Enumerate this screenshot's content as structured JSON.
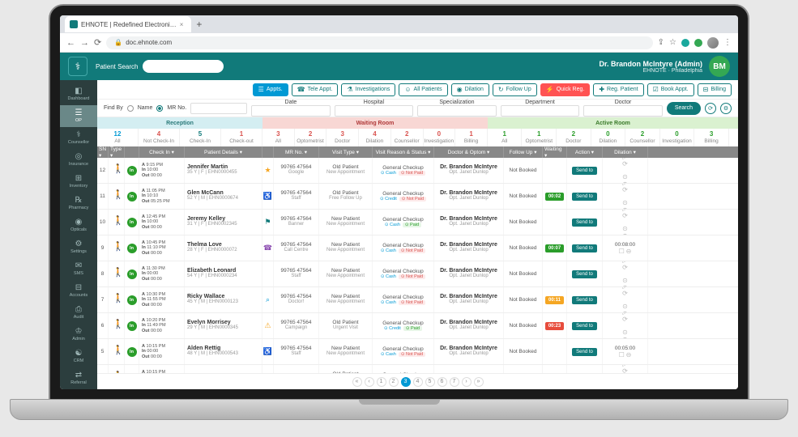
{
  "browser": {
    "tab_title": "EHNOTE | Redefined Electroni…",
    "url": "doc.ehnote.com",
    "lock": "🔒"
  },
  "header": {
    "search_label": "Patient Search",
    "user_name": "Dr. Brandon McIntyre (Admin)",
    "user_location": "EHNOTE · Philadelphia",
    "avatar_initials": "BM"
  },
  "sidebar": [
    {
      "icon": "◧",
      "label": "Dashboard"
    },
    {
      "icon": "☰",
      "label": "OP"
    },
    {
      "icon": "⚕",
      "label": "Counsellor"
    },
    {
      "icon": "◎",
      "label": "Insurance"
    },
    {
      "icon": "⊞",
      "label": "Inventory"
    },
    {
      "icon": "℞",
      "label": "Pharmacy"
    },
    {
      "icon": "◉",
      "label": "Opticals"
    },
    {
      "icon": "⚙",
      "label": "Settings"
    },
    {
      "icon": "✉",
      "label": "SMS"
    },
    {
      "icon": "⊟",
      "label": "Accounts"
    },
    {
      "icon": "⎙",
      "label": "Audit"
    },
    {
      "icon": "♔",
      "label": "Admin"
    },
    {
      "icon": "☯",
      "label": "CRM"
    },
    {
      "icon": "⇄",
      "label": "Referral"
    }
  ],
  "action_buttons": [
    {
      "label": "Appts.",
      "style": "primary",
      "icon": "☰"
    },
    {
      "label": "Tele Appt.",
      "style": "",
      "icon": "☎"
    },
    {
      "label": "Investigations",
      "style": "",
      "icon": "⚗"
    },
    {
      "label": "All Patients",
      "style": "",
      "icon": "☺"
    },
    {
      "label": "Dilation",
      "style": "",
      "icon": "◉"
    },
    {
      "label": "Follow Up",
      "style": "",
      "icon": "↻"
    },
    {
      "label": "Quick Reg.",
      "style": "danger",
      "icon": "⚡"
    },
    {
      "label": "Reg. Patient",
      "style": "",
      "icon": "✚"
    },
    {
      "label": "Book Appt.",
      "style": "",
      "icon": "☑"
    },
    {
      "label": "Billing",
      "style": "",
      "icon": "⊟"
    }
  ],
  "filters": {
    "findby_label": "Find By",
    "name_label": "Name",
    "mr_label": "MR No.",
    "date_label": "Date",
    "hospital_label": "Hospital",
    "specialization_label": "Specialization",
    "department_label": "Department",
    "doctor_label": "Doctor",
    "search_label": "Search"
  },
  "stages": {
    "reception": "Reception",
    "waiting": "Waiting Room",
    "active": "Active Room"
  },
  "reception_counts": [
    {
      "num": "12",
      "label": "All",
      "cls": "blue"
    },
    {
      "num": "4",
      "label": "Not Check-In",
      "cls": "red"
    },
    {
      "num": "5",
      "label": "Check-In",
      "cls": "teal"
    },
    {
      "num": "1",
      "label": "Check-out",
      "cls": "red"
    }
  ],
  "waiting_counts": [
    {
      "num": "3",
      "label": "All",
      "cls": "red"
    },
    {
      "num": "2",
      "label": "Optometrist",
      "cls": "red"
    },
    {
      "num": "3",
      "label": "Doctor",
      "cls": "red"
    },
    {
      "num": "4",
      "label": "Dilation",
      "cls": "red"
    },
    {
      "num": "2",
      "label": "Counsellor",
      "cls": "red"
    },
    {
      "num": "0",
      "label": "Investigation",
      "cls": "red"
    },
    {
      "num": "1",
      "label": "Billing",
      "cls": "red"
    }
  ],
  "active_counts": [
    {
      "num": "1",
      "label": "All",
      "cls": "green"
    },
    {
      "num": "1",
      "label": "Optometrist",
      "cls": "green"
    },
    {
      "num": "2",
      "label": "Doctor",
      "cls": "green"
    },
    {
      "num": "0",
      "label": "Dilation",
      "cls": "green"
    },
    {
      "num": "2",
      "label": "Counsellor",
      "cls": "green"
    },
    {
      "num": "0",
      "label": "Investigation",
      "cls": "green"
    },
    {
      "num": "3",
      "label": "Billing",
      "cls": "green"
    }
  ],
  "columns": [
    "SN",
    "Type",
    "",
    "Check In",
    "Patient Details",
    "",
    "MR No.",
    "Visit Type",
    "Visit Reason & Status",
    "Doctor & Optom",
    "Follow Up",
    "Waiting",
    "Action",
    "Dilation"
  ],
  "rows": [
    {
      "sn": "12",
      "walk": "walk-teal",
      "a": "9:15 PM",
      "in": "10:00",
      "out": "00:00",
      "name": "Jennifer Martin",
      "sub": "35 Y | F | EHN0000455",
      "src": "★",
      "srccls": "src-yellow",
      "mr": "99765 47564",
      "mrsrc": "Google",
      "vt": "Old Patient",
      "vt2": "New Appointment",
      "reason": "General Checkup",
      "pay": "Cash",
      "paystat": "Not Paid",
      "paycls": "pay-unpaid",
      "doc": "Dr. Brandon McIntyre",
      "opt": "Opt. Janet Dunlop",
      "follow": "Not Booked",
      "wait": "",
      "wcls": "",
      "dil": ""
    },
    {
      "sn": "11",
      "walk": "walk-blue",
      "a": "11:05 PM",
      "in": "10:10",
      "out": "05:25 PM",
      "name": "Glen McCann",
      "sub": "52 Y | M | EHN0000674",
      "src": "♿",
      "srccls": "src-blue",
      "mr": "99765 47564",
      "mrsrc": "Staff",
      "vt": "Old Patient",
      "vt2": "Free Follow Up",
      "reason": "General Checkup",
      "pay": "Credit",
      "paystat": "Not Paid",
      "paycls": "pay-unpaid",
      "doc": "Dr. Brandon McIntyre",
      "opt": "Opt. Janet Dunlop",
      "follow": "Not Booked",
      "wait": "00:02",
      "wcls": "wb-green",
      "dil": ""
    },
    {
      "sn": "10",
      "walk": "walk-teal",
      "a": "12:45 PM",
      "in": "10:00",
      "out": "00:00",
      "name": "Jeremy Kelley",
      "sub": "31 Y | F | EHN0002345",
      "src": "⚑",
      "srccls": "src-teal",
      "mr": "99765 47564",
      "mrsrc": "Banner",
      "vt": "New Patient",
      "vt2": "New Appointment",
      "reason": "General Checkup",
      "pay": "Cash",
      "paystat": "Paid",
      "paycls": "pay-paid",
      "doc": "Dr. Brandon McIntyre",
      "opt": "Opt. Janet Dunlop",
      "follow": "Not Booked",
      "wait": "",
      "wcls": "",
      "dil": ""
    },
    {
      "sn": "9",
      "walk": "walk-orange",
      "a": "10:45 PM",
      "in": "11:10 PM",
      "out": "00:00",
      "name": "Thelma Love",
      "sub": "28 Y | F | EHN0000072",
      "src": "☎",
      "srccls": "src-purple",
      "mr": "99765 47564",
      "mrsrc": "Call Centre",
      "vt": "New Patient",
      "vt2": "New Appointment",
      "reason": "General Checkup",
      "pay": "Cash",
      "paystat": "Not Paid",
      "paycls": "pay-unpaid",
      "doc": "Dr. Brandon McIntyre",
      "opt": "Opt. Janet Dunlop",
      "follow": "Not Booked",
      "wait": "00:07",
      "wcls": "wb-green",
      "dil": "00:08:00"
    },
    {
      "sn": "8",
      "walk": "walk-blue",
      "a": "11:30 PM",
      "in": "00:00",
      "out": "00:00",
      "name": "Elizabeth Leonard",
      "sub": "54 Y | F | EHN0000234",
      "src": "",
      "srccls": "",
      "mr": "99765 47564",
      "mrsrc": "Staff",
      "vt": "New Patient",
      "vt2": "New Appointment",
      "reason": "General Checkup",
      "pay": "Cash",
      "paystat": "Not Paid",
      "paycls": "pay-unpaid",
      "doc": "Dr. Brandon McIntyre",
      "opt": "Opt. Janet Dunlop",
      "follow": "Not Booked",
      "wait": "",
      "wcls": "",
      "dil": ""
    },
    {
      "sn": "7",
      "walk": "walk-teal",
      "a": "10:30 PM",
      "in": "11:55 PM",
      "out": "00:00",
      "name": "Ricky Wallace",
      "sub": "45 Y | M | EHN0000123",
      "src": "⌕",
      "srccls": "src-blue",
      "mr": "99765 47564",
      "mrsrc": "Doctor!",
      "vt": "New Patient",
      "vt2": "New Appointment",
      "reason": "General Checkup",
      "pay": "Cash",
      "paystat": "Not Paid",
      "paycls": "pay-unpaid",
      "doc": "Dr. Brandon McIntyre",
      "opt": "Opt. Janet Dunlop",
      "follow": "Not Booked",
      "wait": "00:11",
      "wcls": "wb-yellow",
      "dil": ""
    },
    {
      "sn": "6",
      "walk": "walk-teal",
      "a": "10:20 PM",
      "in": "11:49 PM",
      "out": "00:00",
      "name": "Evelyn Morrisey",
      "sub": "29 Y | M | EHN0000345",
      "src": "⚠",
      "srccls": "src-orange",
      "mr": "99765 47564",
      "mrsrc": "Campaign",
      "vt": "Old Patient",
      "vt2": "Urgent Visit",
      "reason": "General Checkup",
      "pay": "Credit",
      "paystat": "Paid",
      "paycls": "pay-paid",
      "doc": "Dr. Brandon McIntyre",
      "opt": "Opt. Janet Dunlop",
      "follow": "Not Booked",
      "wait": "00:23",
      "wcls": "wb-red",
      "dil": ""
    },
    {
      "sn": "5",
      "walk": "walk-green",
      "a": "10:15 PM",
      "in": "00:00",
      "out": "00:00",
      "name": "Alden Rettig",
      "sub": "48 Y | M | EHN0000543",
      "src": "♿",
      "srccls": "src-blue",
      "mr": "99765 47564",
      "mrsrc": "Staff",
      "vt": "New Patient",
      "vt2": "New Appointment",
      "reason": "General Checkup",
      "pay": "Cash",
      "paystat": "Not Paid",
      "paycls": "pay-unpaid",
      "doc": "Dr. Brandon McIntyre",
      "opt": "Opt. Janet Dunlop",
      "follow": "Not Booked",
      "wait": "",
      "wcls": "",
      "dil": "00:05:00"
    },
    {
      "sn": "4",
      "walk": "walk-teal",
      "a": "10:15 PM",
      "in": "",
      "out": "",
      "name": "Raymond Kuhn",
      "sub": "",
      "src": "",
      "srccls": "",
      "mr": "99765 47564",
      "mrsrc": "",
      "vt": "Old Patient",
      "vt2": "New Appointment",
      "reason": "General Checkup",
      "pay": "",
      "paystat": "",
      "paycls": "",
      "doc": "Dr. Brandon McIntyre",
      "opt": "",
      "follow": "",
      "wait": "",
      "wcls": "",
      "dil": ""
    }
  ],
  "pagination": {
    "pages": [
      "1",
      "2",
      "3",
      "4",
      "5",
      "6",
      "7"
    ],
    "active": 3
  },
  "colors": {
    "header_bg": "#117a7a",
    "sidebar_bg": "#2c3e3e",
    "primary_btn": "#0099d4",
    "danger_btn": "#ff5252",
    "stage_reception": "#d4eef2",
    "stage_waiting": "#f8d7d4",
    "stage_active": "#daf1d0",
    "green": "#2a9d2a",
    "yellow": "#f5a623",
    "red": "#e74c3c"
  }
}
